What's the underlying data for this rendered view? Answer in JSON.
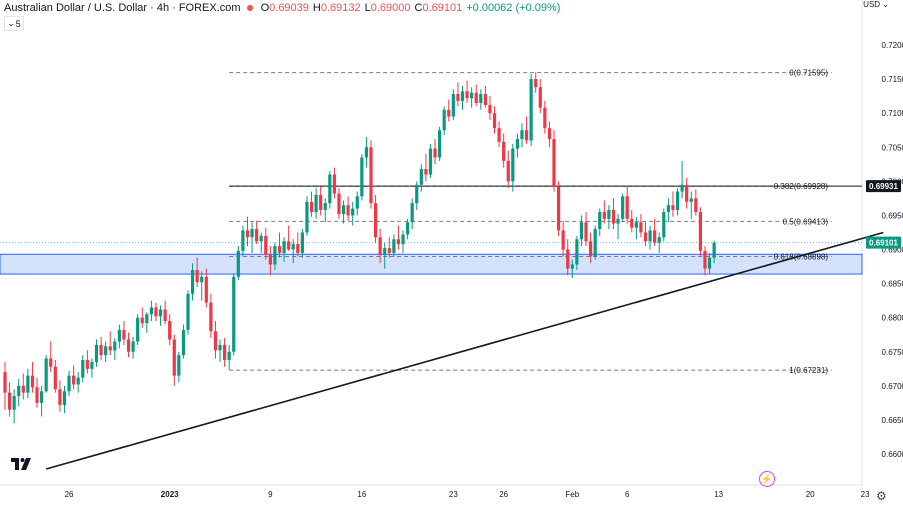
{
  "header": {
    "title": "Australian Dollar / U.S. Dollar · 4h · FOREX.com",
    "open_label": "O",
    "open": "0.69039",
    "high_label": "H",
    "high": "0.69132",
    "low_label": "L",
    "low": "0.69000",
    "close_label": "C",
    "close": "0.69101",
    "change": "+0.00062 (+0.09%)"
  },
  "interval": {
    "value": "5"
  },
  "currency": {
    "label": "USD"
  },
  "chart_data": {
    "type": "candlestick",
    "title": "Australian Dollar / U.S. Dollar · 4h · FOREX.com",
    "y_ticks": [
      0.72,
      0.715,
      0.71,
      0.705,
      0.7,
      0.695,
      0.69,
      0.685,
      0.68,
      0.675,
      0.67,
      0.665,
      0.66
    ],
    "y_tick_labels": [
      "0.72000",
      "0.71500",
      "0.71000",
      "0.70500",
      "0.70000",
      "0.69500",
      "0.69000",
      "0.68500",
      "0.68000",
      "0.67500",
      "0.67000",
      "0.66500",
      "0.66000"
    ],
    "x_ticks": [
      {
        "t": 0.7,
        "label": "26"
      },
      {
        "t": 1.8,
        "label": "2023"
      },
      {
        "t": 2.9,
        "label": "9"
      },
      {
        "t": 3.9,
        "label": "16"
      },
      {
        "t": 4.9,
        "label": "23"
      },
      {
        "t": 5.45,
        "label": "26"
      },
      {
        "t": 6.2,
        "label": "Feb"
      },
      {
        "t": 6.8,
        "label": "6"
      },
      {
        "t": 7.8,
        "label": "13"
      },
      {
        "t": 8.8,
        "label": "20"
      },
      {
        "t": 9.4,
        "label": "23"
      }
    ],
    "x_range": [
      0,
      9.7
    ],
    "y_range": [
      0.6555,
      0.7235
    ],
    "last_price": {
      "value": 0.69101,
      "label": "0.69101",
      "color": "#089981"
    },
    "horizontal_line": {
      "value": 0.6993,
      "label": "0.69931",
      "color": "#131722"
    },
    "fibonacci": {
      "levels": [
        {
          "ratio": "0",
          "value": 0.71595,
          "label": "0(0.71595)"
        },
        {
          "ratio": "0.382",
          "value": 0.69928,
          "label": "0.382(0.69928)"
        },
        {
          "ratio": "0.5",
          "value": 0.69413,
          "label": "0.5(0.69413)"
        },
        {
          "ratio": "0.618",
          "value": 0.68898,
          "label": "0.618(0.68898)"
        },
        {
          "ratio": "1",
          "value": 0.67231,
          "label": "1(0.67231)"
        }
      ],
      "t_start": 2.45
    },
    "support_zone": {
      "from": 0.6864,
      "to": 0.6893,
      "color": "#cfe0fb"
    },
    "trendline": {
      "t1": 0.45,
      "p1": 0.6578,
      "t2": 9.6,
      "p2": 0.6925
    },
    "candles": [
      [
        0.0,
        0.672,
        0.6735,
        0.6665,
        0.669
      ],
      [
        0.05,
        0.669,
        0.6705,
        0.6655,
        0.6665
      ],
      [
        0.1,
        0.6665,
        0.6695,
        0.6645,
        0.6685
      ],
      [
        0.15,
        0.6685,
        0.671,
        0.667,
        0.67
      ],
      [
        0.2,
        0.67,
        0.6718,
        0.668,
        0.669
      ],
      [
        0.25,
        0.669,
        0.6725,
        0.6682,
        0.6715
      ],
      [
        0.3,
        0.6715,
        0.6735,
        0.669,
        0.6698
      ],
      [
        0.35,
        0.6698,
        0.6712,
        0.6668,
        0.6675
      ],
      [
        0.4,
        0.6675,
        0.67,
        0.6655,
        0.6692
      ],
      [
        0.45,
        0.6692,
        0.6745,
        0.669,
        0.674
      ],
      [
        0.5,
        0.674,
        0.6765,
        0.672,
        0.6728
      ],
      [
        0.55,
        0.6728,
        0.6738,
        0.669,
        0.6695
      ],
      [
        0.6,
        0.6695,
        0.6708,
        0.6662,
        0.6672
      ],
      [
        0.65,
        0.6672,
        0.67,
        0.666,
        0.6692
      ],
      [
        0.7,
        0.6692,
        0.6722,
        0.6685,
        0.6715
      ],
      [
        0.75,
        0.6715,
        0.673,
        0.6695,
        0.6702
      ],
      [
        0.8,
        0.6702,
        0.672,
        0.669,
        0.6712
      ],
      [
        0.85,
        0.6712,
        0.6745,
        0.6705,
        0.6738
      ],
      [
        0.9,
        0.6738,
        0.6752,
        0.6718,
        0.6725
      ],
      [
        0.95,
        0.6725,
        0.674,
        0.6712,
        0.6735
      ],
      [
        1.0,
        0.6735,
        0.6768,
        0.6728,
        0.676
      ],
      [
        1.05,
        0.676,
        0.6772,
        0.6738,
        0.6745
      ],
      [
        1.1,
        0.6745,
        0.6765,
        0.6735,
        0.6758
      ],
      [
        1.15,
        0.6758,
        0.678,
        0.6745,
        0.6752
      ],
      [
        1.2,
        0.6752,
        0.677,
        0.6738,
        0.6765
      ],
      [
        1.25,
        0.6765,
        0.679,
        0.6755,
        0.6782
      ],
      [
        1.3,
        0.6782,
        0.6795,
        0.676,
        0.6768
      ],
      [
        1.35,
        0.6768,
        0.6778,
        0.6742,
        0.675
      ],
      [
        1.4,
        0.675,
        0.6772,
        0.674,
        0.6765
      ],
      [
        1.45,
        0.6765,
        0.6805,
        0.676,
        0.68
      ],
      [
        1.5,
        0.68,
        0.6815,
        0.6785,
        0.6792
      ],
      [
        1.55,
        0.6792,
        0.6808,
        0.6778,
        0.6805
      ],
      [
        1.6,
        0.6805,
        0.6825,
        0.6795,
        0.6815
      ],
      [
        1.65,
        0.6815,
        0.6822,
        0.6795,
        0.6802
      ],
      [
        1.7,
        0.6802,
        0.6818,
        0.6788,
        0.6812
      ],
      [
        1.75,
        0.6812,
        0.6825,
        0.679,
        0.6795
      ],
      [
        1.8,
        0.6795,
        0.6805,
        0.676,
        0.6768
      ],
      [
        1.85,
        0.6768,
        0.6775,
        0.67,
        0.6715
      ],
      [
        1.9,
        0.6715,
        0.675,
        0.6705,
        0.6745
      ],
      [
        1.95,
        0.6745,
        0.679,
        0.674,
        0.6782
      ],
      [
        2.0,
        0.6782,
        0.684,
        0.6775,
        0.6835
      ],
      [
        2.05,
        0.6835,
        0.688,
        0.6825,
        0.687
      ],
      [
        2.1,
        0.687,
        0.6888,
        0.6845,
        0.6852
      ],
      [
        2.15,
        0.6852,
        0.6868,
        0.6825,
        0.686
      ],
      [
        2.2,
        0.686,
        0.6872,
        0.6815,
        0.6822
      ],
      [
        2.25,
        0.6822,
        0.6835,
        0.677,
        0.678
      ],
      [
        2.3,
        0.678,
        0.6795,
        0.674,
        0.6752
      ],
      [
        2.35,
        0.6752,
        0.6768,
        0.6735,
        0.676
      ],
      [
        2.4,
        0.676,
        0.677,
        0.6728,
        0.6738
      ],
      [
        2.45,
        0.6738,
        0.676,
        0.6723,
        0.675
      ],
      [
        2.5,
        0.675,
        0.6865,
        0.6745,
        0.686
      ],
      [
        2.55,
        0.686,
        0.6905,
        0.6855,
        0.6898
      ],
      [
        2.6,
        0.6898,
        0.6935,
        0.689,
        0.6928
      ],
      [
        2.65,
        0.6928,
        0.6948,
        0.6905,
        0.6918
      ],
      [
        2.7,
        0.6918,
        0.694,
        0.6895,
        0.693
      ],
      [
        2.75,
        0.693,
        0.6942,
        0.6908,
        0.6912
      ],
      [
        2.8,
        0.6912,
        0.6925,
        0.6895,
        0.692
      ],
      [
        2.85,
        0.692,
        0.6932,
        0.6885,
        0.6892
      ],
      [
        2.9,
        0.6892,
        0.6905,
        0.6862,
        0.6878
      ],
      [
        2.95,
        0.6878,
        0.691,
        0.687,
        0.6905
      ],
      [
        3.0,
        0.6905,
        0.6925,
        0.6888,
        0.6895
      ],
      [
        3.05,
        0.6895,
        0.6918,
        0.6882,
        0.6912
      ],
      [
        3.1,
        0.6912,
        0.6935,
        0.6898,
        0.69
      ],
      [
        3.15,
        0.69,
        0.6915,
        0.688,
        0.6908
      ],
      [
        3.2,
        0.6908,
        0.6925,
        0.689,
        0.6895
      ],
      [
        3.25,
        0.6895,
        0.693,
        0.6888,
        0.6925
      ],
      [
        3.3,
        0.6925,
        0.6978,
        0.692,
        0.697
      ],
      [
        3.35,
        0.697,
        0.6985,
        0.6948,
        0.6955
      ],
      [
        3.4,
        0.6955,
        0.699,
        0.6945,
        0.698
      ],
      [
        3.45,
        0.698,
        0.6992,
        0.695,
        0.6958
      ],
      [
        3.5,
        0.6958,
        0.6975,
        0.694,
        0.6968
      ],
      [
        3.55,
        0.6968,
        0.7015,
        0.696,
        0.701
      ],
      [
        3.6,
        0.701,
        0.702,
        0.6975,
        0.6982
      ],
      [
        3.65,
        0.6982,
        0.699,
        0.6945,
        0.6952
      ],
      [
        3.7,
        0.6952,
        0.6972,
        0.6938,
        0.6965
      ],
      [
        3.75,
        0.6965,
        0.6978,
        0.6942,
        0.695
      ],
      [
        3.8,
        0.695,
        0.697,
        0.6935,
        0.696
      ],
      [
        3.85,
        0.696,
        0.6985,
        0.695,
        0.6978
      ],
      [
        3.9,
        0.6978,
        0.704,
        0.6972,
        0.7035
      ],
      [
        3.95,
        0.7035,
        0.7065,
        0.702,
        0.705
      ],
      [
        4.0,
        0.705,
        0.706,
        0.696,
        0.6968
      ],
      [
        4.05,
        0.6968,
        0.698,
        0.691,
        0.6918
      ],
      [
        4.1,
        0.6918,
        0.693,
        0.688,
        0.6892
      ],
      [
        4.15,
        0.6892,
        0.691,
        0.6872,
        0.6902
      ],
      [
        4.2,
        0.6902,
        0.6918,
        0.6888,
        0.6895
      ],
      [
        4.25,
        0.6895,
        0.6922,
        0.689,
        0.6915
      ],
      [
        4.3,
        0.6915,
        0.6935,
        0.69,
        0.6908
      ],
      [
        4.35,
        0.6908,
        0.6928,
        0.6895,
        0.6922
      ],
      [
        4.4,
        0.6922,
        0.6945,
        0.6915,
        0.694
      ],
      [
        4.45,
        0.694,
        0.6975,
        0.693,
        0.6968
      ],
      [
        4.5,
        0.6968,
        0.7,
        0.6958,
        0.6995
      ],
      [
        4.55,
        0.6995,
        0.7025,
        0.6985,
        0.7018
      ],
      [
        4.6,
        0.7018,
        0.704,
        0.7,
        0.701
      ],
      [
        4.65,
        0.701,
        0.7055,
        0.7005,
        0.7048
      ],
      [
        4.7,
        0.7048,
        0.7062,
        0.7025,
        0.7035
      ],
      [
        4.75,
        0.7035,
        0.708,
        0.703,
        0.7075
      ],
      [
        4.8,
        0.7075,
        0.711,
        0.7068,
        0.7105
      ],
      [
        4.85,
        0.7105,
        0.712,
        0.7088,
        0.7095
      ],
      [
        4.9,
        0.7095,
        0.7135,
        0.709,
        0.7128
      ],
      [
        4.95,
        0.7128,
        0.7145,
        0.711,
        0.7118
      ],
      [
        5.0,
        0.7118,
        0.714,
        0.7105,
        0.7132
      ],
      [
        5.05,
        0.7132,
        0.7148,
        0.7115,
        0.7122
      ],
      [
        5.1,
        0.7122,
        0.7138,
        0.7108,
        0.713
      ],
      [
        5.15,
        0.713,
        0.7142,
        0.711,
        0.7115
      ],
      [
        5.2,
        0.7115,
        0.7135,
        0.7105,
        0.7128
      ],
      [
        5.25,
        0.7128,
        0.714,
        0.7108,
        0.7112
      ],
      [
        5.3,
        0.7112,
        0.7125,
        0.709,
        0.71
      ],
      [
        5.35,
        0.71,
        0.711,
        0.707,
        0.7078
      ],
      [
        5.4,
        0.7078,
        0.7088,
        0.705,
        0.7058
      ],
      [
        5.45,
        0.7058,
        0.707,
        0.702,
        0.703
      ],
      [
        5.5,
        0.703,
        0.7045,
        0.699,
        0.7
      ],
      [
        5.55,
        0.7,
        0.7055,
        0.6985,
        0.7048
      ],
      [
        5.6,
        0.7048,
        0.707,
        0.7035,
        0.7062
      ],
      [
        5.65,
        0.7062,
        0.7085,
        0.705,
        0.7075
      ],
      [
        5.7,
        0.7075,
        0.7095,
        0.7055,
        0.706
      ],
      [
        5.75,
        0.706,
        0.7158,
        0.7052,
        0.715
      ],
      [
        5.8,
        0.715,
        0.716,
        0.713,
        0.7138
      ],
      [
        5.85,
        0.7138,
        0.715,
        0.71,
        0.7108
      ],
      [
        5.9,
        0.7108,
        0.7118,
        0.707,
        0.7078
      ],
      [
        5.95,
        0.7078,
        0.7088,
        0.705,
        0.7062
      ],
      [
        6.0,
        0.7062,
        0.7075,
        0.6985,
        0.6992
      ],
      [
        6.05,
        0.6992,
        0.7,
        0.692,
        0.6928
      ],
      [
        6.1,
        0.6928,
        0.6942,
        0.689,
        0.69
      ],
      [
        6.15,
        0.69,
        0.6915,
        0.6862,
        0.6872
      ],
      [
        6.2,
        0.6872,
        0.6885,
        0.6858,
        0.6878
      ],
      [
        6.25,
        0.6878,
        0.692,
        0.687,
        0.6915
      ],
      [
        6.3,
        0.6915,
        0.695,
        0.6905,
        0.694
      ],
      [
        6.35,
        0.694,
        0.6955,
        0.6905,
        0.6912
      ],
      [
        6.4,
        0.6912,
        0.6925,
        0.688,
        0.689
      ],
      [
        6.45,
        0.689,
        0.6935,
        0.6885,
        0.693
      ],
      [
        6.5,
        0.693,
        0.696,
        0.692,
        0.6955
      ],
      [
        6.55,
        0.6955,
        0.6972,
        0.6938,
        0.6945
      ],
      [
        6.6,
        0.6945,
        0.6965,
        0.693,
        0.6958
      ],
      [
        6.65,
        0.6958,
        0.6975,
        0.693,
        0.6938
      ],
      [
        6.7,
        0.6938,
        0.6952,
        0.6915,
        0.6945
      ],
      [
        6.75,
        0.6945,
        0.6982,
        0.694,
        0.6978
      ],
      [
        6.8,
        0.6978,
        0.6992,
        0.6938,
        0.6945
      ],
      [
        6.85,
        0.6945,
        0.6958,
        0.6925,
        0.6932
      ],
      [
        6.9,
        0.6932,
        0.6948,
        0.6915,
        0.694
      ],
      [
        6.95,
        0.694,
        0.6952,
        0.6918,
        0.6925
      ],
      [
        7.0,
        0.6925,
        0.694,
        0.6905,
        0.6912
      ],
      [
        7.05,
        0.6912,
        0.6935,
        0.69,
        0.6928
      ],
      [
        7.1,
        0.6928,
        0.6945,
        0.6905,
        0.691
      ],
      [
        7.15,
        0.691,
        0.6925,
        0.6895,
        0.6918
      ],
      [
        7.2,
        0.6918,
        0.696,
        0.6912,
        0.6955
      ],
      [
        7.25,
        0.6955,
        0.6975,
        0.694,
        0.6965
      ],
      [
        7.3,
        0.6965,
        0.6985,
        0.6948,
        0.6958
      ],
      [
        7.35,
        0.6958,
        0.699,
        0.695,
        0.6985
      ],
      [
        7.4,
        0.6985,
        0.703,
        0.6975,
        0.6995
      ],
      [
        7.45,
        0.6995,
        0.7005,
        0.696,
        0.697
      ],
      [
        7.5,
        0.697,
        0.6985,
        0.6945,
        0.6975
      ],
      [
        7.55,
        0.6975,
        0.6988,
        0.695,
        0.6955
      ],
      [
        7.6,
        0.6955,
        0.6962,
        0.689,
        0.6898
      ],
      [
        7.65,
        0.6898,
        0.6905,
        0.6862,
        0.6872
      ],
      [
        7.7,
        0.6872,
        0.6895,
        0.6865,
        0.6888
      ],
      [
        7.75,
        0.6888,
        0.6913,
        0.688,
        0.691
      ]
    ]
  }
}
